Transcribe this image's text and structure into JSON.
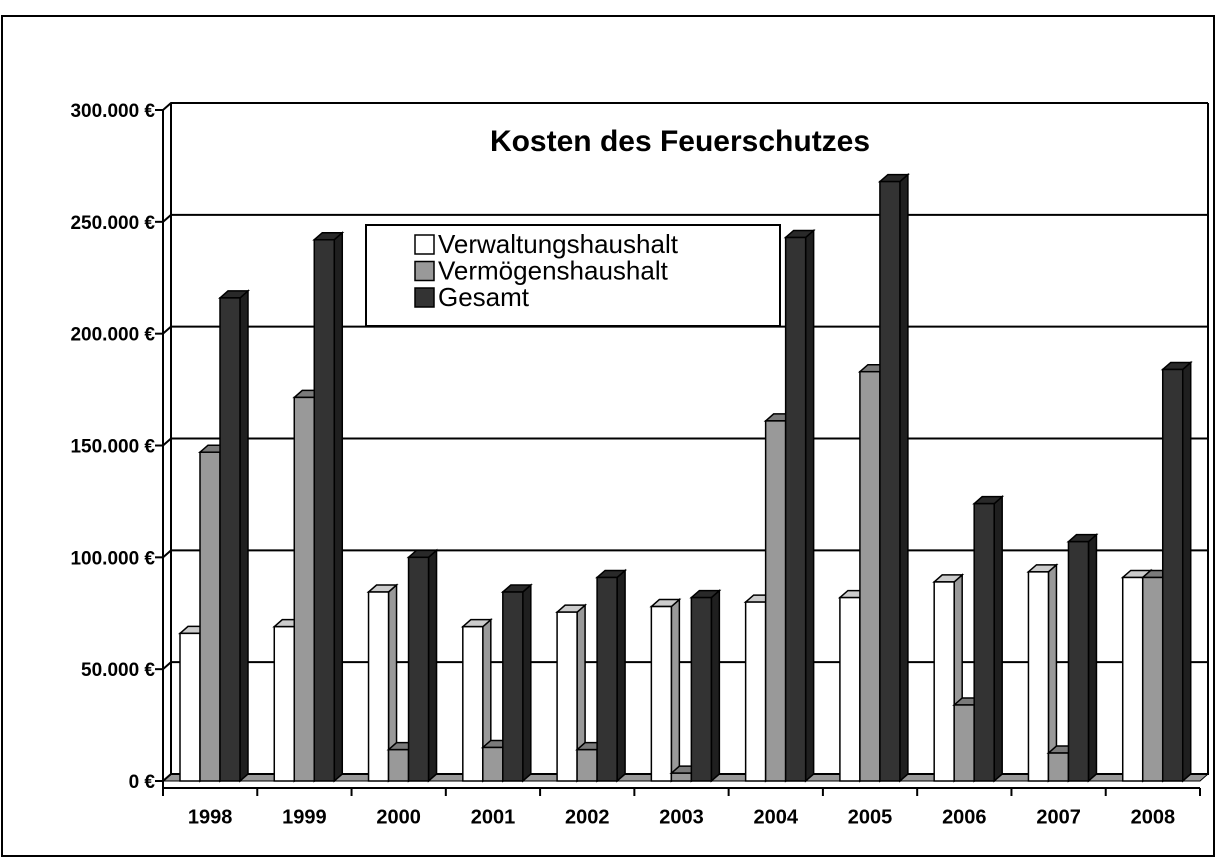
{
  "chart_data": {
    "type": "bar3d",
    "title": "Kosten des Feuerschutzes",
    "categories": [
      "1998",
      "1999",
      "2000",
      "2001",
      "2002",
      "2003",
      "2004",
      "2005",
      "2006",
      "2007",
      "2008"
    ],
    "series": [
      {
        "name": "Verwaltungshaushalt",
        "color": "#ffffff",
        "values": [
          66000,
          69000,
          84500,
          69000,
          75500,
          78000,
          80000,
          82000,
          89000,
          93500,
          91000
        ]
      },
      {
        "name": "Vermögenshaushalt",
        "color": "#999999",
        "values": [
          147000,
          171500,
          14000,
          15000,
          14000,
          3500,
          161000,
          183000,
          34000,
          12500,
          91000
        ]
      },
      {
        "name": "Gesamt",
        "color": "#333333",
        "values": [
          216000,
          242000,
          100000,
          84500,
          91000,
          82000,
          243000,
          268000,
          124000,
          107000,
          184000
        ]
      }
    ],
    "ylim": [
      0,
      300000
    ],
    "yticks": [
      {
        "value": 0,
        "label": "0 €"
      },
      {
        "value": 50000,
        "label": "50.000 €"
      },
      {
        "value": 100000,
        "label": "100.000 €"
      },
      {
        "value": 150000,
        "label": "150.000 €"
      },
      {
        "value": 200000,
        "label": "200.000 €"
      },
      {
        "value": 250000,
        "label": "250.000 €"
      },
      {
        "value": 300000,
        "label": "300.000 €"
      }
    ],
    "grid": true,
    "legend": "top-left"
  }
}
